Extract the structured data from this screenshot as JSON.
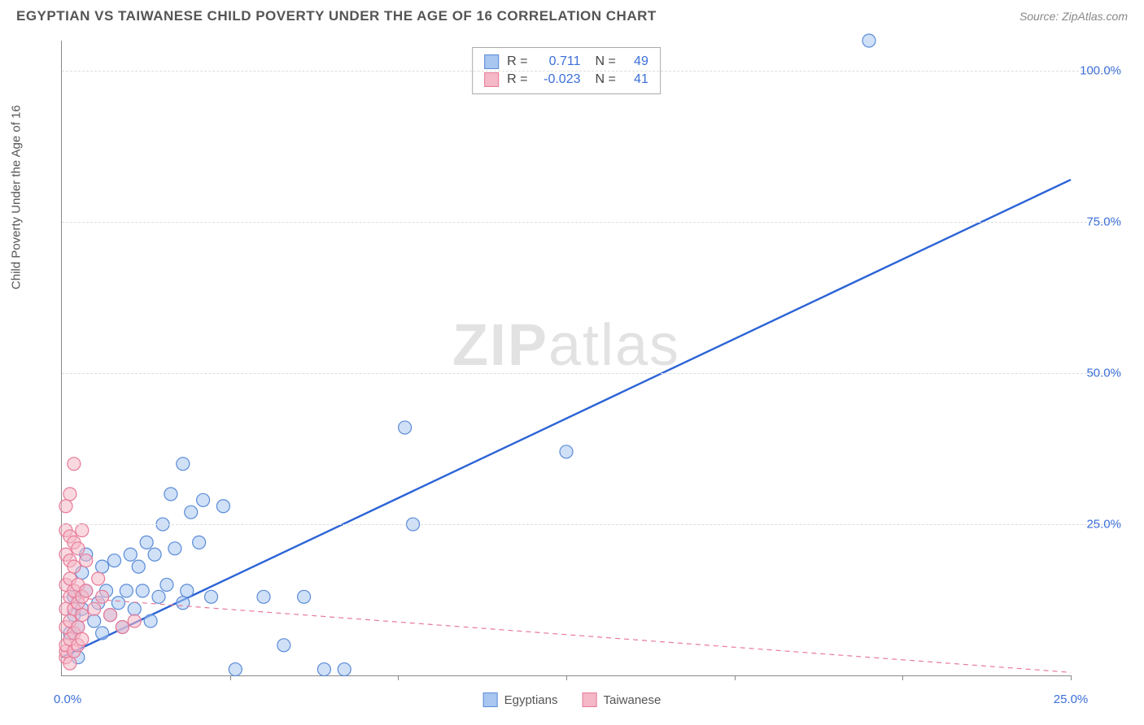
{
  "header": {
    "title": "EGYPTIAN VS TAIWANESE CHILD POVERTY UNDER THE AGE OF 16 CORRELATION CHART",
    "source_label": "Source: ZipAtlas.com"
  },
  "watermark": {
    "part1": "ZIP",
    "part2": "atlas"
  },
  "chart": {
    "type": "scatter",
    "y_axis_label": "Child Poverty Under the Age of 16",
    "x_min": 0,
    "x_max": 25,
    "y_min": 0,
    "y_max": 105,
    "background_color": "#ffffff",
    "grid_color": "#dddddd",
    "axis_color": "#888888",
    "tick_label_color": "#3b6fd8",
    "tick_label_fontsize": 15,
    "y_ticks": [
      {
        "value": 25,
        "label": "25.0%"
      },
      {
        "value": 50,
        "label": "50.0%"
      },
      {
        "value": 75,
        "label": "75.0%"
      },
      {
        "value": 100,
        "label": "100.0%"
      }
    ],
    "x_ticks": [
      {
        "value": 0,
        "label": "0.0%",
        "origin": true
      },
      {
        "value": 4.17,
        "label": ""
      },
      {
        "value": 8.33,
        "label": ""
      },
      {
        "value": 12.5,
        "label": ""
      },
      {
        "value": 16.67,
        "label": ""
      },
      {
        "value": 20.83,
        "label": ""
      },
      {
        "value": 25,
        "label": "25.0%"
      }
    ],
    "marker_radius": 8,
    "marker_stroke_width": 1.2,
    "series": [
      {
        "name": "Egyptians",
        "color_fill": "#a8c6f0",
        "color_stroke": "#5a8bd8",
        "fill_opacity": 0.55,
        "trend": {
          "x1": 0,
          "y1": 3,
          "x2": 25,
          "y2": 82,
          "stroke": "#2b63d6",
          "width": 2.4,
          "dash": "none"
        },
        "points": [
          [
            0.2,
            7
          ],
          [
            0.3,
            10
          ],
          [
            0.3,
            13
          ],
          [
            0.4,
            8
          ],
          [
            0.4,
            3
          ],
          [
            0.5,
            11
          ],
          [
            0.5,
            17
          ],
          [
            0.6,
            14
          ],
          [
            0.6,
            20
          ],
          [
            0.8,
            9
          ],
          [
            0.9,
            12
          ],
          [
            1.0,
            18
          ],
          [
            1.0,
            7
          ],
          [
            1.1,
            14
          ],
          [
            1.2,
            10
          ],
          [
            1.3,
            19
          ],
          [
            1.4,
            12
          ],
          [
            1.5,
            8
          ],
          [
            1.6,
            14
          ],
          [
            1.7,
            20
          ],
          [
            1.8,
            11
          ],
          [
            1.9,
            18
          ],
          [
            2.0,
            14
          ],
          [
            2.1,
            22
          ],
          [
            2.2,
            9
          ],
          [
            2.3,
            20
          ],
          [
            2.4,
            13
          ],
          [
            2.5,
            25
          ],
          [
            2.6,
            15
          ],
          [
            2.7,
            30
          ],
          [
            2.8,
            21
          ],
          [
            3.0,
            12
          ],
          [
            3.0,
            35
          ],
          [
            3.1,
            14
          ],
          [
            3.2,
            27
          ],
          [
            3.4,
            22
          ],
          [
            3.5,
            29
          ],
          [
            3.7,
            13
          ],
          [
            4.0,
            28
          ],
          [
            4.3,
            1
          ],
          [
            5.0,
            13
          ],
          [
            5.5,
            5
          ],
          [
            6.0,
            13
          ],
          [
            6.5,
            1
          ],
          [
            7.0,
            1
          ],
          [
            8.5,
            41
          ],
          [
            8.7,
            25
          ],
          [
            12.5,
            37
          ],
          [
            20.0,
            105
          ]
        ]
      },
      {
        "name": "Taiwanese",
        "color_fill": "#f4b8c6",
        "color_stroke": "#e87a98",
        "fill_opacity": 0.55,
        "trend": {
          "x1": 0,
          "y1": 13,
          "x2": 25,
          "y2": 0.5,
          "stroke": "#e87a98",
          "width": 1.2,
          "dash": "6,5"
        },
        "points": [
          [
            0.1,
            3
          ],
          [
            0.1,
            4
          ],
          [
            0.1,
            5
          ],
          [
            0.1,
            8
          ],
          [
            0.1,
            11
          ],
          [
            0.1,
            15
          ],
          [
            0.1,
            20
          ],
          [
            0.1,
            24
          ],
          [
            0.1,
            28
          ],
          [
            0.2,
            2
          ],
          [
            0.2,
            6
          ],
          [
            0.2,
            9
          ],
          [
            0.2,
            13
          ],
          [
            0.2,
            16
          ],
          [
            0.2,
            19
          ],
          [
            0.2,
            23
          ],
          [
            0.2,
            30
          ],
          [
            0.3,
            4
          ],
          [
            0.3,
            7
          ],
          [
            0.3,
            11
          ],
          [
            0.3,
            14
          ],
          [
            0.3,
            18
          ],
          [
            0.3,
            22
          ],
          [
            0.3,
            35
          ],
          [
            0.4,
            5
          ],
          [
            0.4,
            8
          ],
          [
            0.4,
            12
          ],
          [
            0.4,
            15
          ],
          [
            0.4,
            21
          ],
          [
            0.5,
            6
          ],
          [
            0.5,
            10
          ],
          [
            0.5,
            13
          ],
          [
            0.5,
            24
          ],
          [
            0.6,
            14
          ],
          [
            0.6,
            19
          ],
          [
            0.8,
            11
          ],
          [
            0.9,
            16
          ],
          [
            1.0,
            13
          ],
          [
            1.2,
            10
          ],
          [
            1.5,
            8
          ],
          [
            1.8,
            9
          ]
        ]
      }
    ],
    "stats_box": {
      "rows": [
        {
          "swatch_fill": "#a8c6f0",
          "swatch_stroke": "#5a8bd8",
          "r_label": "R =",
          "r_value": "0.711",
          "n_label": "N =",
          "n_value": "49"
        },
        {
          "swatch_fill": "#f4b8c6",
          "swatch_stroke": "#e87a98",
          "r_label": "R =",
          "r_value": "-0.023",
          "n_label": "N =",
          "n_value": "41"
        }
      ]
    },
    "bottom_legend": [
      {
        "swatch_fill": "#a8c6f0",
        "swatch_stroke": "#5a8bd8",
        "label": "Egyptians"
      },
      {
        "swatch_fill": "#f4b8c6",
        "swatch_stroke": "#e87a98",
        "label": "Taiwanese"
      }
    ]
  }
}
